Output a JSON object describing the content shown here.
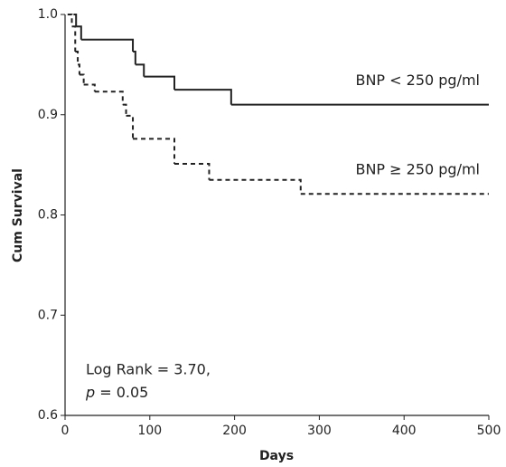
{
  "chart_data": {
    "type": "step",
    "x_label": "Days",
    "y_label": "Cum Survival",
    "xlim": [
      0,
      500
    ],
    "xticks": [
      0,
      100,
      200,
      300,
      400,
      500
    ],
    "ylim": [
      0.6,
      1.0
    ],
    "yticks": [
      0.6,
      0.7,
      0.8,
      0.9,
      {
        "value": 1.0,
        "label": "1.0"
      }
    ],
    "series": [
      {
        "name": "BNP < 250 pg/ml",
        "color": "#222222",
        "dashed": false,
        "x": [
          10,
          13,
          19,
          80,
          83,
          93,
          129,
          196,
          500
        ],
        "values": [
          1.0,
          0.988,
          0.975,
          0.963,
          0.95,
          0.938,
          0.925,
          0.91,
          0.91
        ]
      },
      {
        "name": "BNP ≥ 250 pg/ml",
        "color": "#222222",
        "dashed": true,
        "x": [
          3,
          8,
          12,
          15,
          17,
          22,
          35,
          68,
          72,
          80,
          129,
          170,
          278,
          500
        ],
        "values": [
          1.0,
          0.988,
          0.963,
          0.95,
          0.94,
          0.93,
          0.923,
          0.91,
          0.899,
          0.876,
          0.851,
          0.835,
          0.821,
          0.821
        ]
      }
    ],
    "annotation_line1": "Log Rank = 3.70,",
    "annotation_italic": "p",
    "annotation_rest": " = 0.05"
  }
}
